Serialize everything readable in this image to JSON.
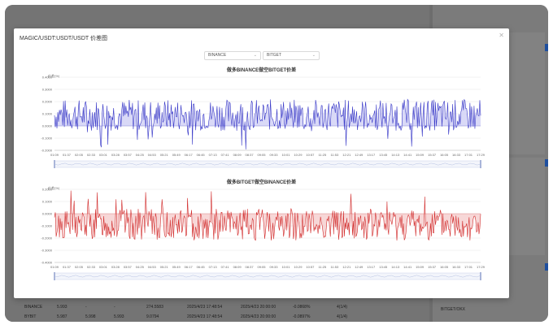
{
  "modal": {
    "title": "MAGIC/USDT:USDT/USDT 价差图"
  },
  "selects": {
    "left": "BINANCE",
    "right": "BITGET"
  },
  "charts": [
    {
      "title": "做多BINANCE做空BITGET价差",
      "ylabel": "价差(%)",
      "color": "#3838c7",
      "fill": "#c9c9f3",
      "ylim": [
        -0.2,
        0.4
      ],
      "yticks": [
        "0.4000",
        "0.3000",
        "0.2000",
        "0.1000",
        "0.0000",
        "-0.1000",
        "-0.2000"
      ],
      "xticks": [
        "01:09",
        "01:37",
        "02:05",
        "02:33",
        "03:01",
        "03:28",
        "03:57",
        "04:25",
        "04:53",
        "05:21",
        "05:49",
        "06:17",
        "06:45",
        "07:13",
        "07:41",
        "08:09",
        "08:37",
        "09:05",
        "09:33",
        "10:01",
        "10:29",
        "10:57",
        "11:25",
        "11:53",
        "12:21",
        "12:49",
        "13:17",
        "13:45",
        "14:13",
        "14:41",
        "15:09",
        "15:37",
        "16:05",
        "16:33",
        "17:01",
        "17:29"
      ],
      "seed": 7,
      "base": 0.09,
      "amp": 0.13
    },
    {
      "title": "做多BITGET做空BINANCE价差",
      "ylabel": "价差(%)",
      "color": "#d22d2d",
      "fill": "#f3c6c6",
      "ylim": [
        -0.4,
        0.2
      ],
      "yticks": [
        "0.2000",
        "0.1000",
        "0.0000",
        "-0.1000",
        "-0.2000",
        "-0.3000",
        "-0.4000"
      ],
      "xticks": [
        "01:09",
        "01:37",
        "02:05",
        "02:33",
        "03:01",
        "03:28",
        "03:57",
        "04:25",
        "04:53",
        "05:21",
        "05:49",
        "06:17",
        "06:45",
        "07:13",
        "07:41",
        "08:09",
        "08:37",
        "09:05",
        "09:33",
        "10:01",
        "10:29",
        "10:57",
        "11:25",
        "11:53",
        "12:21",
        "12:49",
        "13:17",
        "13:45",
        "14:13",
        "14:41",
        "15:09",
        "15:37",
        "16:05",
        "16:33",
        "17:01",
        "17:29"
      ],
      "seed": 13,
      "base": -0.09,
      "amp": 0.13
    }
  ],
  "background_rows": [
    {
      "exchange": "BINANCE",
      "c1": "5.993",
      "c2": "-",
      "c3": "-",
      "c4": "274.5583",
      "c5": "2025/4/23 17:48:54",
      "c6": "2025/4/23 20:00:00",
      "c7": "-0.0868%",
      "c8": "4(1/4)"
    },
    {
      "exchange": "BYBIT",
      "c1": "5.987",
      "c2": "5.998",
      "c3": "5.993",
      "c4": "9.0794",
      "c5": "2025/4/23 17:48:54",
      "c6": "2025/4/23 20:00:00",
      "c7": "-0.0897%",
      "c8": "4(1/4)"
    }
  ],
  "background_right_label": "BITGET/OKX"
}
